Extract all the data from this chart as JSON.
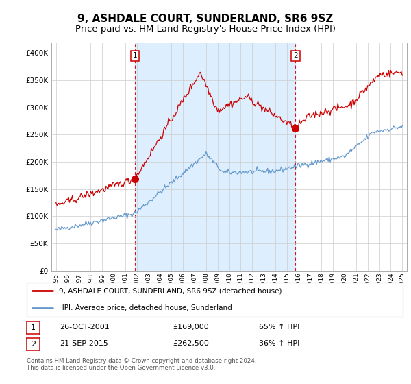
{
  "title": "9, ASHDALE COURT, SUNDERLAND, SR6 9SZ",
  "subtitle": "Price paid vs. HM Land Registry's House Price Index (HPI)",
  "ylim": [
    0,
    420000
  ],
  "yticks": [
    0,
    50000,
    100000,
    150000,
    200000,
    250000,
    300000,
    350000,
    400000
  ],
  "ytick_labels": [
    "£0",
    "£50K",
    "£100K",
    "£150K",
    "£200K",
    "£250K",
    "£300K",
    "£350K",
    "£400K"
  ],
  "hpi_color": "#6699cc",
  "price_color": "#cc0000",
  "marker_color": "#cc0000",
  "vline_color": "#cc0000",
  "shade_color": "#ddeeff",
  "legend_label_red": "9, ASHDALE COURT, SUNDERLAND, SR6 9SZ (detached house)",
  "legend_label_blue": "HPI: Average price, detached house, Sunderland",
  "transaction1_date": "26-OCT-2001",
  "transaction1_price": "£169,000",
  "transaction1_hpi": "65% ↑ HPI",
  "transaction2_date": "21-SEP-2015",
  "transaction2_price": "£262,500",
  "transaction2_hpi": "36% ↑ HPI",
  "footer": "Contains HM Land Registry data © Crown copyright and database right 2024.\nThis data is licensed under the Open Government Licence v3.0.",
  "background_color": "#ffffff",
  "grid_color": "#cccccc",
  "title_fontsize": 11,
  "subtitle_fontsize": 9.5,
  "t1_year": 2001.833,
  "t2_year": 2015.75,
  "t1_price": 169000,
  "t2_price": 262500
}
